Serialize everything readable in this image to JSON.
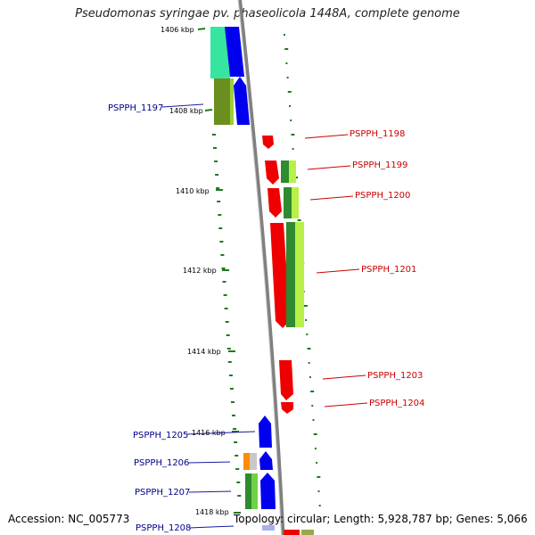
{
  "title": "Pseudomonas syringae pv. phaseolicola 1448A, complete genome",
  "footer": {
    "accession": "Accession: NC_005773",
    "summary": "Topology: circular; Length: 5,928,787 bp; Genes: 5,066"
  },
  "ticks": [
    {
      "label": "1406 kbp"
    },
    {
      "label": "1408 kbp"
    },
    {
      "label": "1410 kbp"
    },
    {
      "label": "1412 kbp"
    },
    {
      "label": "1414 kbp"
    },
    {
      "label": "1416 kbp"
    },
    {
      "label": "1418 kbp"
    }
  ],
  "genes_reverse": [
    {
      "label": "PSPPH_1197"
    },
    {
      "label": "PSPPH_1205"
    },
    {
      "label": "PSPPH_1206"
    },
    {
      "label": "PSPPH_1207"
    },
    {
      "label": "PSPPH_1208"
    }
  ],
  "genes_forward": [
    {
      "label": "PSPPH_1198"
    },
    {
      "label": "PSPPH_1199"
    },
    {
      "label": "PSPPH_1200"
    },
    {
      "label": "PSPPH_1201"
    },
    {
      "label": "PSPPH_1203"
    },
    {
      "label": "PSPPH_1204"
    }
  ],
  "colors": {
    "forward_strand": "#ff0000",
    "reverse_strand": "#0000ff",
    "reverse_label": "#00008b",
    "forward_label": "#cc0000",
    "backbone": "#808080",
    "gc_dots": "#1f7a1f"
  }
}
